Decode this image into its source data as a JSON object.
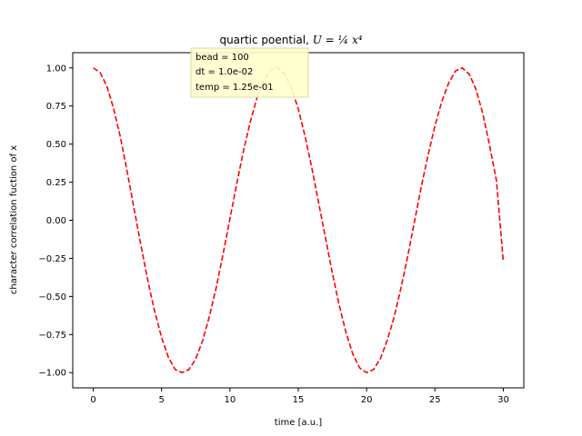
{
  "chart_data": {
    "type": "line",
    "title_text": "quartic poential, ",
    "title_math": "U = ¼ x⁴",
    "xlabel": "time [a.u.]",
    "ylabel": "character correlation fuction of x",
    "xlim": [
      -1.5,
      31.5
    ],
    "ylim": [
      -1.1,
      1.1
    ],
    "xticks": [
      0,
      5,
      10,
      15,
      20,
      25,
      30
    ],
    "xtick_labels": [
      "0",
      "5",
      "10",
      "15",
      "20",
      "25",
      "30"
    ],
    "yticks": [
      1.0,
      0.75,
      0.5,
      0.25,
      0.0,
      -0.25,
      -0.5,
      -0.75,
      -1.0
    ],
    "ytick_labels": [
      "1.00",
      "0.75",
      "0.50",
      "0.25",
      "0.00",
      "−0.25",
      "−0.50",
      "−0.75",
      "−1.00"
    ],
    "grid": false,
    "series": [
      {
        "color": "#ff0000",
        "style": "dashed",
        "x": [
          0,
          0.5,
          1,
          1.5,
          2,
          2.5,
          3,
          3.5,
          4,
          4.5,
          5,
          5.5,
          6,
          6.5,
          7,
          7.5,
          8,
          8.5,
          9,
          9.5,
          10,
          10.5,
          11,
          11.5,
          12,
          12.5,
          13,
          13.5,
          14,
          14.5,
          15,
          15.5,
          16,
          16.5,
          17,
          17.5,
          18,
          18.5,
          19,
          19.5,
          20,
          20.5,
          21,
          21.5,
          22,
          22.5,
          23,
          23.5,
          24,
          24.5,
          25,
          25.5,
          26,
          26.5,
          27,
          27.5,
          28,
          28.5,
          29,
          29.5,
          30
        ],
        "y": [
          1.0,
          0.97,
          0.88,
          0.73,
          0.54,
          0.31,
          0.07,
          -0.17,
          -0.4,
          -0.6,
          -0.77,
          -0.9,
          -0.98,
          -1.0,
          -0.98,
          -0.91,
          -0.79,
          -0.63,
          -0.44,
          -0.22,
          0.01,
          0.24,
          0.46,
          0.65,
          0.81,
          0.92,
          0.99,
          1.0,
          0.96,
          0.87,
          0.73,
          0.55,
          0.34,
          0.11,
          -0.12,
          -0.35,
          -0.56,
          -0.74,
          -0.88,
          -0.97,
          -1.0,
          -0.98,
          -0.91,
          -0.79,
          -0.64,
          -0.45,
          -0.24,
          -0.01,
          0.22,
          0.43,
          0.62,
          0.78,
          0.9,
          0.98,
          1.0,
          0.96,
          0.86,
          0.7,
          0.49,
          0.26,
          -0.27
        ]
      }
    ],
    "annotation": {
      "lines": [
        "bead = 100",
        "dt = 1.0e-02",
        "temp = 1.25e-01"
      ],
      "facecolor": "#ffffcc",
      "edgecolor": "#d8d8a0"
    }
  }
}
